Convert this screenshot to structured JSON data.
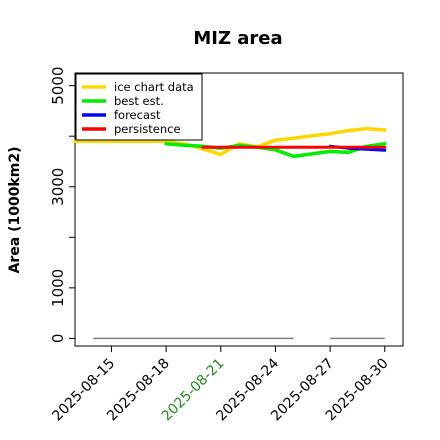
{
  "chart_data": {
    "type": "line",
    "title": "MIZ area",
    "ylabel": "Area (1000km2)",
    "ylim": [
      -150,
      5250
    ],
    "yticks": [
      0,
      1000,
      3000,
      5000
    ],
    "xlim": [
      "2025-08-13",
      "2025-08-31"
    ],
    "xticks": [
      {
        "label": "2025-08-15",
        "color": "#000000"
      },
      {
        "label": "2025-08-18",
        "color": "#000000"
      },
      {
        "label": "2025-08-21",
        "color": "#228b22"
      },
      {
        "label": "2025-08-24",
        "color": "#000000"
      },
      {
        "label": "2025-08-27",
        "color": "#000000"
      },
      {
        "label": "2025-08-30",
        "color": "#000000"
      }
    ],
    "legend": {
      "position": "top-left",
      "entries": [
        {
          "label": "ice chart data",
          "color": "#ffd700"
        },
        {
          "label": "best est.",
          "color": "#00ee00"
        },
        {
          "label": "forecast",
          "color": "#0000ff"
        },
        {
          "label": "persistence",
          "color": "#ff0000"
        }
      ]
    },
    "series": [
      {
        "name": "ice chart data",
        "color": "#ffd700",
        "x": [
          "2025-08-13",
          "2025-08-14",
          "2025-08-15",
          "2025-08-16",
          "2025-08-17",
          "2025-08-18",
          "2025-08-19",
          "2025-08-20",
          "2025-08-21",
          "2025-08-22",
          "2025-08-23",
          "2025-08-24",
          "2025-08-25",
          "2025-08-26",
          "2025-08-27",
          "2025-08-28",
          "2025-08-29",
          "2025-08-30"
        ],
        "y": [
          3900,
          3900,
          3900,
          3900,
          3900,
          3900,
          3850,
          3750,
          3640,
          3850,
          3790,
          3920,
          3960,
          4010,
          4050,
          4110,
          4150,
          4120
        ]
      },
      {
        "name": "best est.",
        "color": "#00ee00",
        "x": [
          "2025-08-18",
          "2025-08-19",
          "2025-08-20",
          "2025-08-21",
          "2025-08-22",
          "2025-08-23",
          "2025-08-24",
          "2025-08-25",
          "2025-08-26",
          "2025-08-27",
          "2025-08-28",
          "2025-08-29",
          "2025-08-30"
        ],
        "y": [
          3850,
          3820,
          3800,
          3760,
          3820,
          3780,
          3730,
          3600,
          3650,
          3700,
          3680,
          3800,
          3850
        ]
      },
      {
        "name": "forecast",
        "color": "#0000ff",
        "x": [
          "2025-08-27",
          "2025-08-28",
          "2025-08-29",
          "2025-08-30"
        ],
        "y": [
          3800,
          3760,
          3740,
          3720
        ]
      },
      {
        "name": "persistence",
        "color": "#ff0000",
        "x": [
          "2025-08-20",
          "2025-08-30"
        ],
        "y": [
          3780,
          3780
        ]
      }
    ],
    "reference_lines": [
      {
        "y": 0,
        "x": [
          "2025-08-14",
          "2025-08-25"
        ],
        "color": "#808080"
      },
      {
        "y": 0,
        "x": [
          "2025-08-27",
          "2025-08-30"
        ],
        "color": "#808080"
      }
    ]
  }
}
